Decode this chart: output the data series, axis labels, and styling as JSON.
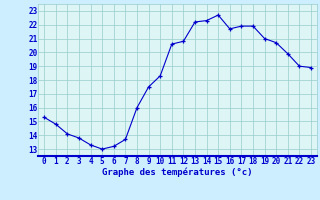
{
  "hours": [
    0,
    1,
    2,
    3,
    4,
    5,
    6,
    7,
    8,
    9,
    10,
    11,
    12,
    13,
    14,
    15,
    16,
    17,
    18,
    19,
    20,
    21,
    22,
    23
  ],
  "temps": [
    15.3,
    14.8,
    14.1,
    13.8,
    13.3,
    13.0,
    13.2,
    13.7,
    16.0,
    17.5,
    18.3,
    20.6,
    20.8,
    22.2,
    22.3,
    22.7,
    21.7,
    21.9,
    21.9,
    21.0,
    20.7,
    19.9,
    19.0,
    18.9
  ],
  "line_color": "#0000cc",
  "marker_color": "#0000cc",
  "bg_color": "#cceeff",
  "plot_bg_color": "#ddf5f5",
  "grid_color": "#99cccc",
  "xlabel": "Graphe des températures (°c)",
  "xlabel_color": "#0000cc",
  "tick_color": "#0000cc",
  "ylim": [
    12.5,
    23.5
  ],
  "xlim": [
    -0.5,
    23.5
  ],
  "yticks": [
    13,
    14,
    15,
    16,
    17,
    18,
    19,
    20,
    21,
    22,
    23
  ],
  "xticks": [
    0,
    1,
    2,
    3,
    4,
    5,
    6,
    7,
    8,
    9,
    10,
    11,
    12,
    13,
    14,
    15,
    16,
    17,
    18,
    19,
    20,
    21,
    22,
    23
  ],
  "bottom_bar_color": "#0000cc",
  "tick_fontsize": 5.5,
  "xlabel_fontsize": 6.5
}
